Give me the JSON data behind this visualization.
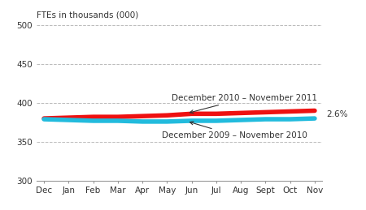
{
  "ylabel": "FTEs in thousands (000)",
  "ylim": [
    300,
    500
  ],
  "yticks": [
    300,
    350,
    400,
    450,
    500
  ],
  "x_labels": [
    "Dec",
    "Jan",
    "Feb",
    "Mar",
    "Apr",
    "May",
    "Jun",
    "Jul",
    "Aug",
    "Sept",
    "Oct",
    "Nov"
  ],
  "red_line": [
    380,
    381,
    382,
    382,
    383,
    384,
    386,
    386,
    387,
    388,
    389,
    390
  ],
  "blue_line": [
    379,
    378,
    377,
    377,
    376,
    376,
    377,
    377,
    378,
    379,
    379,
    380
  ],
  "red_color": "#ee1111",
  "blue_color": "#22bbdd",
  "red_label": "December 2010 – November 2011",
  "blue_label": "December 2009 – November 2010",
  "pct_label": "2.6%",
  "background_color": "#ffffff",
  "grid_color": "#bbbbbb",
  "annotation_arrow_color": "#333333",
  "text_color": "#333333",
  "spine_color": "#999999"
}
